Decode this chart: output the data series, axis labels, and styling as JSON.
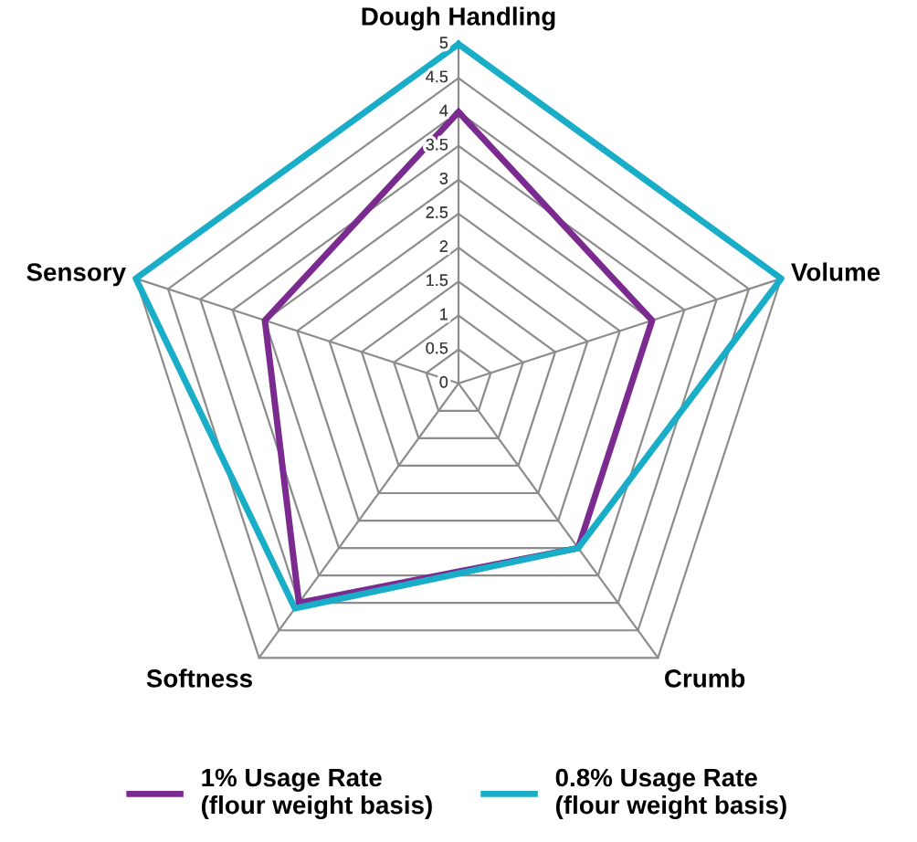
{
  "chart_data": {
    "type": "radar",
    "categories": [
      "Dough Handling",
      "Volume",
      "Crumb",
      "Softness",
      "Sensory"
    ],
    "series": [
      {
        "name": "1% Usage Rate\n(flour weight basis)",
        "color": "#7b2a8f",
        "values": [
          4,
          3,
          3,
          4,
          3
        ]
      },
      {
        "name": "0.8% Usage Rate\n(flour weight basis)",
        "color": "#1aadc8",
        "values": [
          5,
          5,
          3,
          4.1,
          5
        ]
      }
    ],
    "ylim": [
      0,
      5
    ],
    "yticks": [
      0,
      0.5,
      1,
      1.5,
      2,
      2.5,
      3,
      3.5,
      4,
      4.5,
      5
    ],
    "grid": true,
    "legend": "bottom",
    "marker": "none",
    "line_style": "solid"
  }
}
